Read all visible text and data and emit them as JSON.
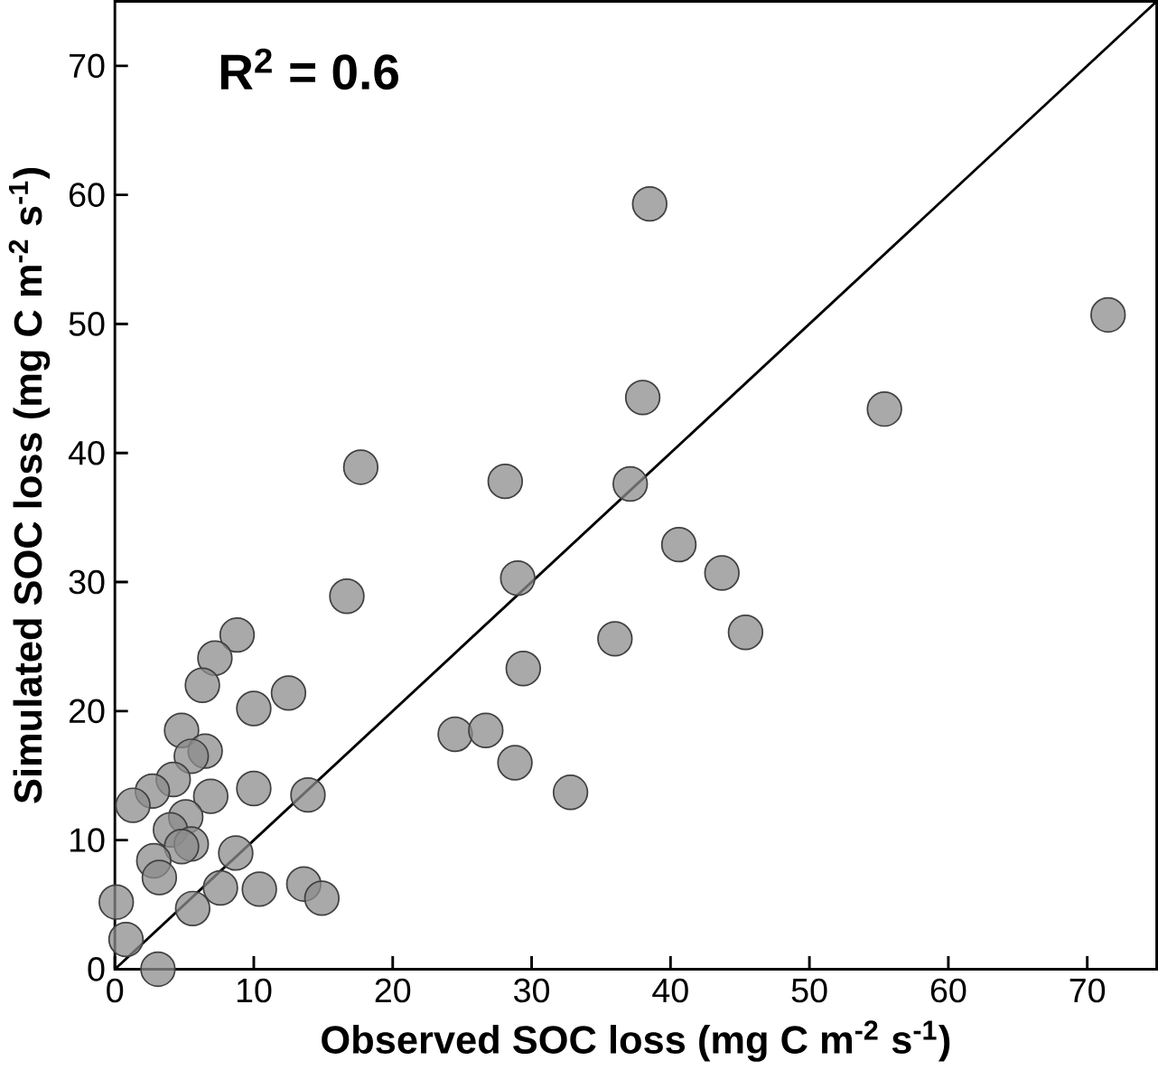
{
  "chart_data": {
    "type": "scatter",
    "xlabel": "Observed SOC loss (mg C m$^{-2}$ s$^{-1}$)",
    "ylabel": "Simulated SOC loss (mg C m$^{-2}$ s$^{-1}$)",
    "annotations": [
      "R$^{2}$ = 0.6"
    ],
    "xlim": [
      0,
      75
    ],
    "ylim": [
      0,
      75
    ],
    "xticks": [
      0,
      10,
      20,
      30,
      40,
      50,
      60,
      70
    ],
    "yticks": [
      0,
      10,
      20,
      30,
      40,
      50,
      60,
      70
    ],
    "grid": false,
    "series": [
      {
        "color": "#8c8c8c",
        "marker": "circle",
        "x": [
          16.7,
          29.0,
          8.8,
          7.2,
          6.3,
          10.0,
          12.5,
          4.8,
          6.5,
          5.5,
          4.2,
          2.7,
          1.3,
          6.9,
          10.0,
          13.9,
          5.1,
          4.0,
          5.5,
          4.8,
          8.7,
          2.8,
          3.2,
          7.6,
          10.4,
          13.6,
          14.9,
          5.6,
          24.5,
          26.7,
          28.8,
          29.4,
          0.1,
          0.8,
          3.1,
          38.0,
          55.4,
          28.1,
          37.1,
          40.6,
          43.7,
          36.0,
          45.4,
          32.8,
          17.7,
          38.5,
          71.5
        ],
        "values": [
          28.9,
          30.3,
          25.9,
          24.1,
          22.0,
          20.2,
          21.4,
          18.5,
          16.9,
          16.5,
          14.7,
          13.8,
          12.7,
          13.4,
          14.0,
          13.5,
          11.8,
          10.8,
          9.7,
          9.5,
          9.0,
          8.4,
          7.1,
          6.3,
          6.2,
          6.6,
          5.5,
          4.7,
          18.2,
          18.5,
          16.0,
          23.3,
          5.2,
          2.3,
          0,
          44.3,
          43.4,
          37.8,
          37.6,
          32.9,
          30.7,
          25.6,
          26.1,
          13.7,
          38.9,
          59.3,
          50.7
        ]
      },
      {
        "type": "line",
        "color": "#000000",
        "x": [
          0,
          75
        ],
        "values": [
          0,
          75
        ]
      }
    ]
  }
}
